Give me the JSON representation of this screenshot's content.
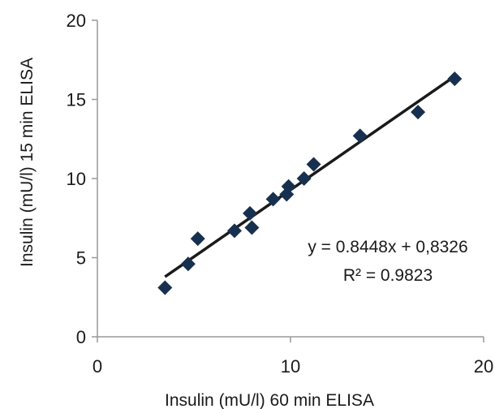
{
  "chart_data": {
    "type": "scatter",
    "xlabel": "Insulin (mU/l) 60 min ELISA",
    "ylabel": "Insulin (mU/l) 15 min ELISA",
    "xlim": [
      0,
      20
    ],
    "ylim": [
      0,
      20
    ],
    "xticks": [
      "0",
      "10",
      "20"
    ],
    "yticks": [
      "0",
      "5",
      "10",
      "15",
      "20"
    ],
    "grid": false,
    "marker": "diamond",
    "marker_color": "#17304f",
    "line_color": "#1a1a1a",
    "series": [
      {
        "x": [
          3.5,
          4.7,
          5.2,
          7.1,
          7.9,
          8.0,
          9.1,
          9.8,
          9.9,
          10.7,
          11.2,
          13.6,
          16.6,
          18.5
        ],
        "y": [
          3.1,
          4.6,
          6.2,
          6.7,
          7.8,
          6.9,
          8.7,
          9.0,
          9.5,
          10.0,
          10.9,
          12.7,
          14.2,
          16.3
        ]
      }
    ],
    "trendline": {
      "slope": 0.8448,
      "intercept": 0.8326,
      "x_range": [
        3.5,
        18.5
      ]
    },
    "annotations": [
      "y = 0.8448x + 0,8326",
      "R² = 0.9823"
    ]
  }
}
